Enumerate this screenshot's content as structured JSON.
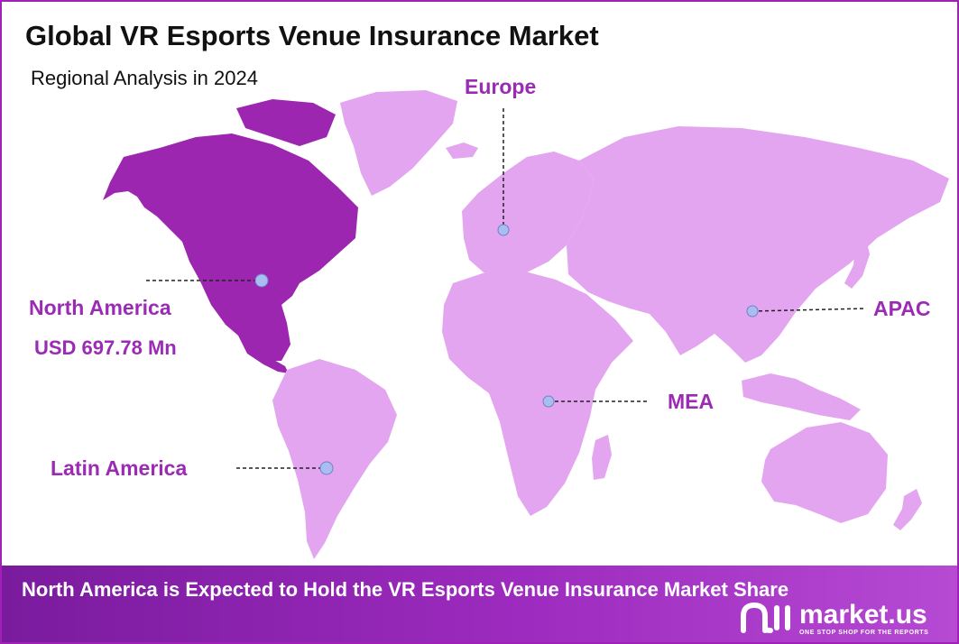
{
  "title": "Global VR Esports Venue Insurance Market",
  "subtitle": "Regional Analysis in 2024",
  "colors": {
    "highlight_region": "#9c26b0",
    "other_regions": "#e3a5ef",
    "label_text": "#9b2bb5",
    "marker_fill": "#a9bdf0",
    "footer_start": "#7a1b9e",
    "footer_end": "#b64ad3"
  },
  "regions": {
    "north_america": {
      "name": "North America",
      "value": "USD 697.78 Mn",
      "highlighted": true
    },
    "europe": {
      "name": "Europe"
    },
    "apac": {
      "name": "APAC"
    },
    "mea": {
      "name": "MEA"
    },
    "latin_america": {
      "name": "Latin America"
    }
  },
  "footer": {
    "text": "North America is Expected to Hold the VR Esports Venue Insurance Market Share"
  },
  "logo": {
    "name": "market.us",
    "tagline": "ONE STOP SHOP FOR THE REPORTS",
    "icon": "market-us-logo-icon"
  }
}
